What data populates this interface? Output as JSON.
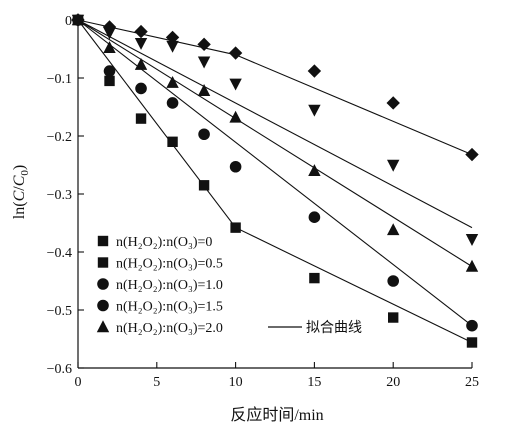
{
  "chart_data": {
    "type": "scatter",
    "xlabel": "反应时间/min",
    "ylabel": "ln(C/C0)",
    "xlim": [
      0,
      25
    ],
    "ylim": [
      -0.6,
      0
    ],
    "xticks": [
      0,
      5,
      10,
      15,
      20,
      25
    ],
    "yticks": [
      0,
      -0.1,
      -0.2,
      -0.3,
      -0.4,
      -0.5,
      -0.6
    ],
    "xtick_labels": [
      "0",
      "5",
      "10",
      "15",
      "20",
      "25"
    ],
    "ytick_labels": [
      "0",
      "−0.1",
      "−0.2",
      "−0.3",
      "−0.4",
      "−0.5",
      "−0.6"
    ],
    "grid": false,
    "legend_placement": "bottom-left",
    "fit_legend_label": "拟合曲线",
    "series": [
      {
        "name": "n(H2O2):n(O3)=0",
        "legend_label": "n(H₂O₂):n(O₃)=0",
        "marker": "square",
        "x": [
          0,
          2,
          4,
          6,
          8,
          10,
          15,
          20,
          25
        ],
        "y": [
          0,
          -0.105,
          -0.17,
          -0.21,
          -0.285,
          -0.358,
          -0.445,
          -0.513,
          -0.556
        ],
        "fit": [
          [
            0,
            0
          ],
          [
            10,
            -0.358
          ],
          [
            25,
            -0.556
          ]
        ]
      },
      {
        "name": "n(H2O2):n(O3)=0.5",
        "legend_label": "n(H₂O₂):n(O₃)=0.5",
        "marker": "square",
        "x": [],
        "y": [],
        "fit": []
      },
      {
        "name": "n(H2O2):n(O3)=1.0",
        "legend_label": "n(H₂O₂):n(O₃)=1.0",
        "marker": "circle",
        "x": [
          0,
          2,
          4,
          6,
          8,
          10,
          15,
          20,
          25
        ],
        "y": [
          0,
          -0.088,
          -0.118,
          -0.143,
          -0.197,
          -0.253,
          -0.34,
          -0.45,
          -0.527
        ],
        "fit": [
          [
            0,
            0
          ],
          [
            25,
            -0.527
          ]
        ]
      },
      {
        "name": "n(H2O2):n(O3)=1.5",
        "legend_label": "n(H₂O₂):n(O₃)=1.5",
        "marker": "circle",
        "x": [],
        "y": [],
        "fit": []
      },
      {
        "name": "n(H2O2):n(O3)=2.0",
        "legend_label": "n(H₂O₂):n(O₃)=2.0",
        "marker": "triangle-up",
        "x": [
          0,
          2,
          4,
          6,
          8,
          10,
          15,
          20,
          25
        ],
        "y": [
          0,
          -0.048,
          -0.077,
          -0.108,
          -0.122,
          -0.168,
          -0.26,
          -0.362,
          -0.425
        ],
        "fit": [
          [
            0,
            0
          ],
          [
            25,
            -0.425
          ]
        ]
      },
      {
        "name": "",
        "marker": "triangle-down",
        "x": [
          0,
          2,
          4,
          6,
          8,
          10,
          15,
          20,
          25
        ],
        "y": [
          0,
          -0.022,
          -0.04,
          -0.045,
          -0.072,
          -0.11,
          -0.155,
          -0.25,
          -0.378
        ],
        "fit": [
          [
            0,
            0
          ],
          [
            25,
            -0.358
          ]
        ]
      },
      {
        "name": "",
        "marker": "diamond",
        "x": [
          0,
          2,
          4,
          6,
          8,
          10,
          15,
          20,
          25
        ],
        "y": [
          0,
          -0.012,
          -0.02,
          -0.03,
          -0.042,
          -0.057,
          -0.088,
          -0.143,
          -0.232
        ],
        "fit": [
          [
            0,
            0
          ],
          [
            10,
            -0.06
          ],
          [
            25,
            -0.232
          ]
        ]
      }
    ]
  }
}
